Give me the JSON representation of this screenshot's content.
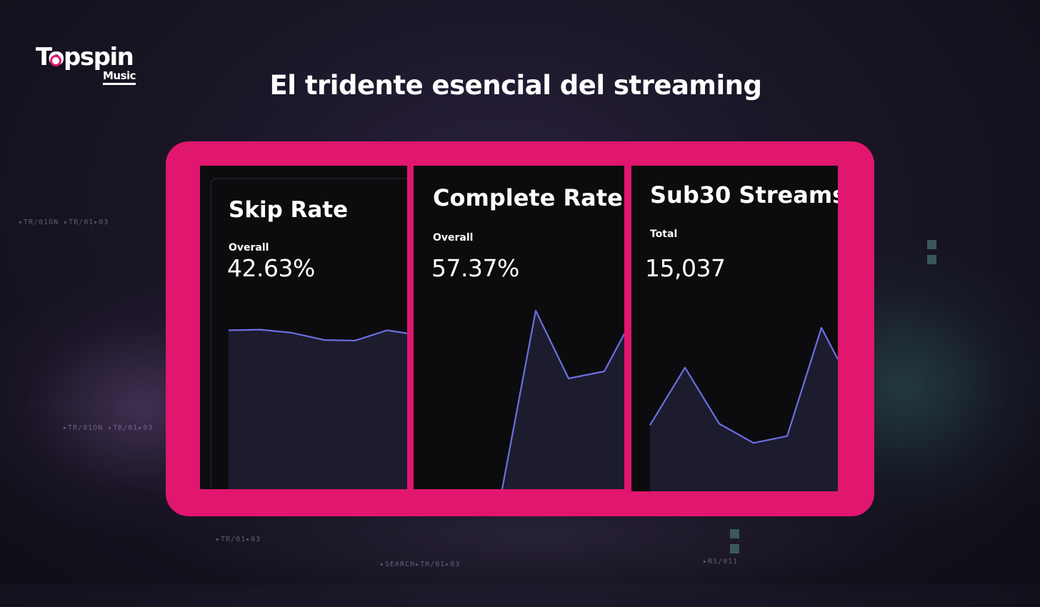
{
  "logo": {
    "main": "Topspin",
    "sub": "Music"
  },
  "title": "El tridente esencial del streaming",
  "decorations": [
    "▸TR/01ON ▸TR/01▸03",
    "▸TR/01ON ▸TR/01▸03",
    "▸TR/01▸03",
    "▸SEARCH▸TR/01▸03",
    "▸RS/011"
  ],
  "colors": {
    "frame": "#e0166f",
    "line": "#6b6fe0",
    "area": "#1c1c2e",
    "panel": "#0c0c0e"
  },
  "chart_data": [
    {
      "type": "area",
      "title": "Skip Rate",
      "metric_label": "Overall",
      "metric_value": "42.63%",
      "ylim": [
        0,
        100
      ],
      "values": [
        70,
        71,
        66,
        54,
        53,
        70,
        65
      ]
    },
    {
      "type": "area",
      "title": "Complete Rate",
      "metric_label": "Overall",
      "metric_value": "57.37%",
      "ylim": [
        0,
        100
      ],
      "values": [
        0,
        100,
        62,
        66,
        87
      ]
    },
    {
      "type": "area",
      "title": "Sub30 Streams",
      "metric_label": "Total",
      "metric_value": "15,037",
      "ylim": [
        0,
        100
      ],
      "values": [
        29,
        71,
        30,
        16,
        21,
        100,
        77
      ]
    }
  ]
}
